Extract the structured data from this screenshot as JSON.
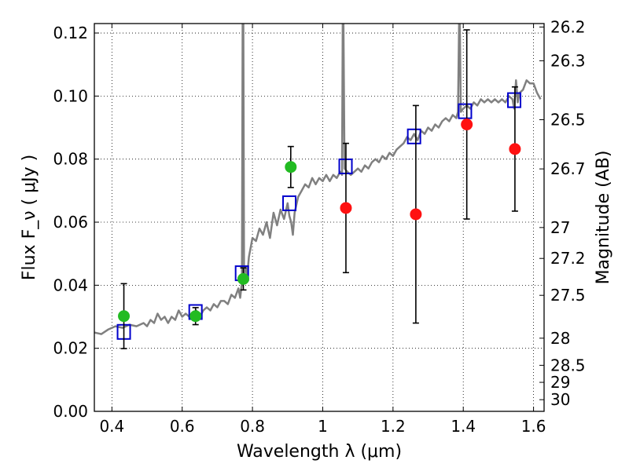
{
  "chart_data": {
    "type": "scatter",
    "xlabel": "Wavelength  λ (μm)",
    "ylabel": "Flux  F_ν  ( μJy )",
    "ylabel_right": "Magnitude (AB)",
    "xlim": [
      0.35,
      1.63
    ],
    "ylim": [
      0.0,
      0.123
    ],
    "grid": true,
    "x_ticks": [
      0.4,
      0.6,
      0.8,
      1.0,
      1.2,
      1.4,
      1.6
    ],
    "x_tick_labels": [
      "0.4",
      "0.6",
      "0.8",
      "1",
      "1.2",
      "1.4",
      "1.6"
    ],
    "y_ticks": [
      0.0,
      0.02,
      0.04,
      0.06,
      0.08,
      0.1,
      0.12
    ],
    "y_tick_labels": [
      "0.00",
      "0.02",
      "0.04",
      "0.06",
      "0.08",
      "0.10",
      "0.12"
    ],
    "right_axis_ticks": [
      {
        "label": "26.2",
        "flux": 0.1219
      },
      {
        "label": "26.3",
        "flux": 0.1112
      },
      {
        "label": "26.5",
        "flux": 0.0925
      },
      {
        "label": "26.7",
        "flux": 0.0769
      },
      {
        "label": "27",
        "flux": 0.0583
      },
      {
        "label": "27.2",
        "flux": 0.0485
      },
      {
        "label": "27.5",
        "flux": 0.0368
      },
      {
        "label": "28",
        "flux": 0.0232
      },
      {
        "label": "28.5",
        "flux": 0.0146
      },
      {
        "label": "29",
        "flux": 0.0092
      },
      {
        "label": "30",
        "flux": 0.0037
      }
    ],
    "series": [
      {
        "kind": "line",
        "color": "#808080",
        "points": [
          [
            0.35,
            0.025
          ],
          [
            0.37,
            0.0245
          ],
          [
            0.39,
            0.026
          ],
          [
            0.41,
            0.027
          ],
          [
            0.43,
            0.0265
          ],
          [
            0.45,
            0.0275
          ],
          [
            0.47,
            0.027
          ],
          [
            0.49,
            0.028
          ],
          [
            0.5,
            0.027
          ],
          [
            0.51,
            0.029
          ],
          [
            0.52,
            0.028
          ],
          [
            0.53,
            0.031
          ],
          [
            0.54,
            0.029
          ],
          [
            0.55,
            0.03
          ],
          [
            0.56,
            0.028
          ],
          [
            0.57,
            0.03
          ],
          [
            0.58,
            0.029
          ],
          [
            0.59,
            0.032
          ],
          [
            0.6,
            0.03
          ],
          [
            0.61,
            0.031
          ],
          [
            0.62,
            0.03
          ],
          [
            0.63,
            0.031
          ],
          [
            0.64,
            0.032
          ],
          [
            0.65,
            0.03
          ],
          [
            0.66,
            0.032
          ],
          [
            0.67,
            0.033
          ],
          [
            0.68,
            0.032
          ],
          [
            0.69,
            0.034
          ],
          [
            0.7,
            0.033
          ],
          [
            0.71,
            0.035
          ],
          [
            0.72,
            0.035
          ],
          [
            0.73,
            0.034
          ],
          [
            0.74,
            0.037
          ],
          [
            0.75,
            0.036
          ],
          [
            0.76,
            0.039
          ],
          [
            0.765,
            0.036
          ],
          [
            0.77,
            0.041
          ],
          [
            0.772,
            0.1235
          ],
          [
            0.774,
            0.1235
          ],
          [
            0.776,
            0.043
          ],
          [
            0.78,
            0.046
          ],
          [
            0.785,
            0.043
          ],
          [
            0.79,
            0.049
          ],
          [
            0.8,
            0.055
          ],
          [
            0.81,
            0.054
          ],
          [
            0.82,
            0.058
          ],
          [
            0.83,
            0.056
          ],
          [
            0.84,
            0.06
          ],
          [
            0.85,
            0.055
          ],
          [
            0.86,
            0.063
          ],
          [
            0.87,
            0.059
          ],
          [
            0.88,
            0.064
          ],
          [
            0.89,
            0.061
          ],
          [
            0.9,
            0.066
          ],
          [
            0.905,
            0.062
          ],
          [
            0.91,
            0.06
          ],
          [
            0.915,
            0.056
          ],
          [
            0.92,
            0.063
          ],
          [
            0.93,
            0.068
          ],
          [
            0.94,
            0.07
          ],
          [
            0.95,
            0.072
          ],
          [
            0.96,
            0.071
          ],
          [
            0.97,
            0.074
          ],
          [
            0.98,
            0.072
          ],
          [
            0.99,
            0.074
          ],
          [
            1.0,
            0.073
          ],
          [
            1.01,
            0.075
          ],
          [
            1.02,
            0.073
          ],
          [
            1.03,
            0.075
          ],
          [
            1.04,
            0.074
          ],
          [
            1.05,
            0.076
          ],
          [
            1.055,
            0.075
          ],
          [
            1.057,
            0.1235
          ],
          [
            1.059,
            0.1235
          ],
          [
            1.062,
            0.077
          ],
          [
            1.07,
            0.076
          ],
          [
            1.08,
            0.075
          ],
          [
            1.09,
            0.076
          ],
          [
            1.1,
            0.077
          ],
          [
            1.11,
            0.076
          ],
          [
            1.12,
            0.078
          ],
          [
            1.13,
            0.077
          ],
          [
            1.14,
            0.079
          ],
          [
            1.15,
            0.08
          ],
          [
            1.16,
            0.079
          ],
          [
            1.17,
            0.081
          ],
          [
            1.18,
            0.08
          ],
          [
            1.19,
            0.082
          ],
          [
            1.2,
            0.081
          ],
          [
            1.21,
            0.083
          ],
          [
            1.22,
            0.084
          ],
          [
            1.23,
            0.085
          ],
          [
            1.24,
            0.087
          ],
          [
            1.25,
            0.086
          ],
          [
            1.26,
            0.088
          ],
          [
            1.27,
            0.086
          ],
          [
            1.28,
            0.089
          ],
          [
            1.29,
            0.088
          ],
          [
            1.3,
            0.09
          ],
          [
            1.31,
            0.089
          ],
          [
            1.32,
            0.091
          ],
          [
            1.33,
            0.09
          ],
          [
            1.34,
            0.092
          ],
          [
            1.35,
            0.093
          ],
          [
            1.36,
            0.092
          ],
          [
            1.37,
            0.094
          ],
          [
            1.38,
            0.093
          ],
          [
            1.385,
            0.095
          ],
          [
            1.388,
            0.1235
          ],
          [
            1.39,
            0.1235
          ],
          [
            1.393,
            0.095
          ],
          [
            1.4,
            0.096
          ],
          [
            1.41,
            0.097
          ],
          [
            1.42,
            0.096
          ],
          [
            1.43,
            0.098
          ],
          [
            1.44,
            0.097
          ],
          [
            1.45,
            0.099
          ],
          [
            1.46,
            0.098
          ],
          [
            1.47,
            0.099
          ],
          [
            1.48,
            0.098
          ],
          [
            1.49,
            0.099
          ],
          [
            1.5,
            0.098
          ],
          [
            1.51,
            0.099
          ],
          [
            1.52,
            0.098
          ],
          [
            1.53,
            0.1
          ],
          [
            1.54,
            0.099
          ],
          [
            1.545,
            0.096
          ],
          [
            1.55,
            0.105
          ],
          [
            1.555,
            0.098
          ],
          [
            1.56,
            0.101
          ],
          [
            1.57,
            0.102
          ],
          [
            1.58,
            0.105
          ],
          [
            1.59,
            0.104
          ],
          [
            1.6,
            0.104
          ],
          [
            1.61,
            0.101
          ],
          [
            1.62,
            0.099
          ]
        ]
      },
      {
        "kind": "markers",
        "marker": "square-open",
        "color": "#0000cc",
        "x": [
          0.434,
          0.638,
          0.77,
          0.905,
          1.065,
          1.26,
          1.405,
          1.545
        ],
        "y": [
          0.0252,
          0.0315,
          0.0438,
          0.066,
          0.0777,
          0.0872,
          0.0952,
          0.0987
        ]
      },
      {
        "kind": "markers",
        "marker": "circle",
        "color": "#22bb22",
        "x": [
          0.434,
          0.638,
          0.774,
          0.909
        ],
        "y": [
          0.0302,
          0.0302,
          0.042,
          0.0775
        ],
        "yerr": [
          0.0103,
          0.0027,
          0.0035,
          0.0065
        ]
      },
      {
        "kind": "markers",
        "marker": "circle",
        "color": "#ff1111",
        "x": [
          1.066,
          1.265,
          1.41,
          1.547
        ],
        "y": [
          0.0645,
          0.0625,
          0.091,
          0.0832
        ],
        "yerr": [
          0.0205,
          0.0345,
          0.03,
          0.0197
        ]
      }
    ]
  }
}
